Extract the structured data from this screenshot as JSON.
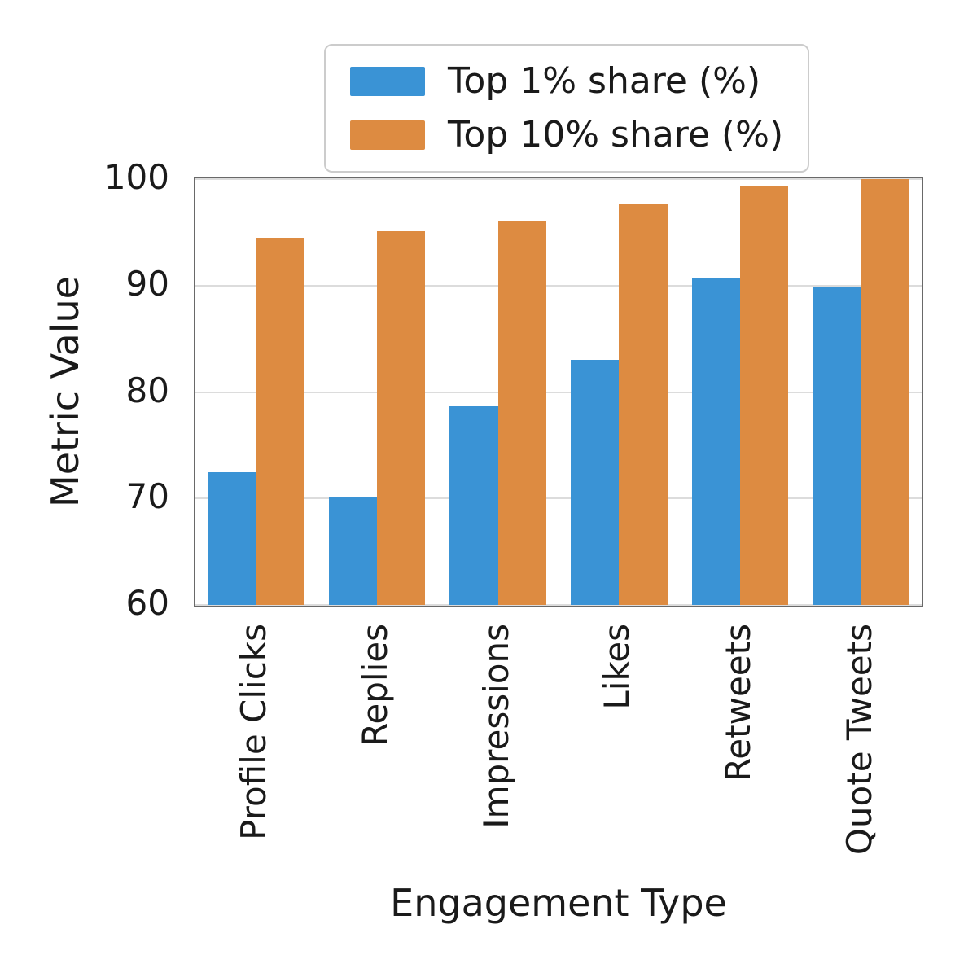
{
  "chart_data": {
    "type": "bar",
    "categories": [
      "Profile Clicks",
      "Replies",
      "Impressions",
      "Likes",
      "Retweets",
      "Quote Tweets"
    ],
    "series": [
      {
        "name": "Top 1% share (%)",
        "color": "#3a93d5",
        "values": [
          72.5,
          70.2,
          78.7,
          83.0,
          90.7,
          89.8
        ]
      },
      {
        "name": "Top 10% share (%)",
        "color": "#dd8b41",
        "values": [
          94.5,
          95.1,
          96.0,
          97.6,
          99.4,
          100.0
        ]
      }
    ],
    "xlabel": "Engagement Type",
    "ylabel": "Metric Value",
    "ylim": [
      60,
      100
    ],
    "yticks": [
      60,
      70,
      80,
      90,
      100
    ],
    "grid": true,
    "grid_color": "#dcdcdc",
    "legend_position": "upper center"
  }
}
